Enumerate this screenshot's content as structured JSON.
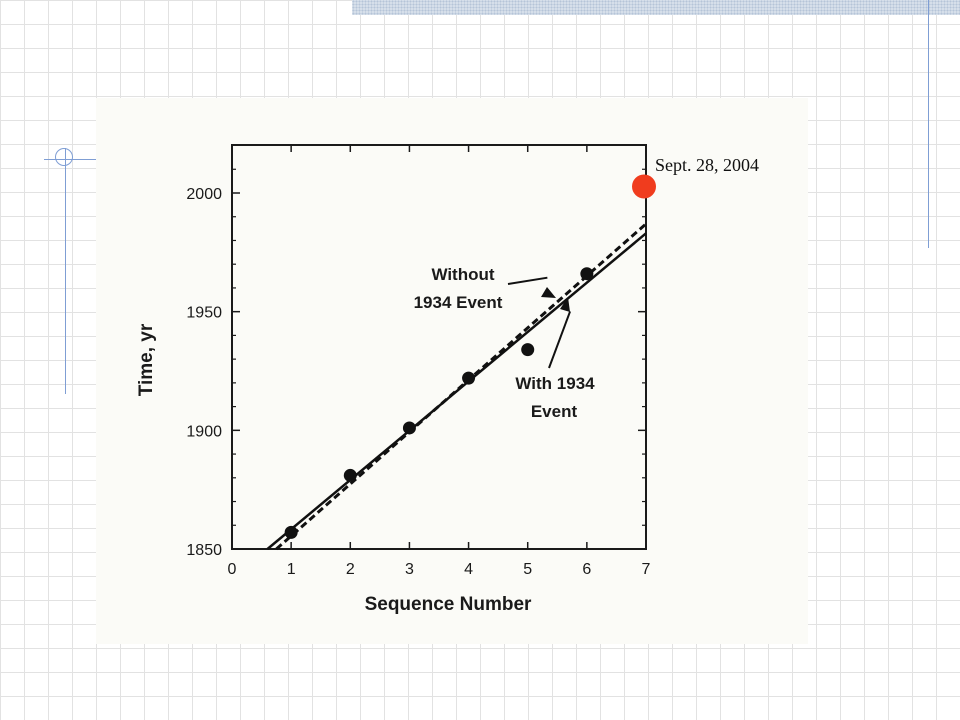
{
  "chart_data": {
    "type": "scatter",
    "xlabel": "Sequence Number",
    "ylabel": "Time, yr",
    "xlim": [
      0,
      7
    ],
    "ylim": [
      1850,
      2020
    ],
    "x_ticks": [
      "0",
      "1",
      "2",
      "3",
      "4",
      "5",
      "6",
      "7"
    ],
    "y_ticks": [
      "1850",
      "1900",
      "1950",
      "2000"
    ],
    "points": [
      {
        "x": 1,
        "y": 1857
      },
      {
        "x": 2,
        "y": 1881
      },
      {
        "x": 3,
        "y": 1901
      },
      {
        "x": 4,
        "y": 1922
      },
      {
        "x": 5,
        "y": 1934
      },
      {
        "x": 6,
        "y": 1966
      }
    ],
    "series": [
      {
        "style": "solid",
        "from": {
          "x": 0.6,
          "y": 1850
        },
        "to": {
          "x": 7,
          "y": 1983
        }
      },
      {
        "style": "dashed",
        "from": {
          "x": 0.75,
          "y": 1850
        },
        "to": {
          "x": 7,
          "y": 1987
        }
      }
    ],
    "annotations": [
      {
        "lines": [
          "Without",
          "1934   Event"
        ],
        "target": {
          "x": 5.4,
          "y": 1966
        }
      },
      {
        "lines": [
          "With   1934",
          "Event"
        ],
        "target": {
          "x": 5.75,
          "y": 1956
        }
      }
    ],
    "highlight": {
      "label": "Sept. 28, 2004",
      "x": 7,
      "y": 2004,
      "color": "#f03c1e"
    },
    "grid": false
  }
}
